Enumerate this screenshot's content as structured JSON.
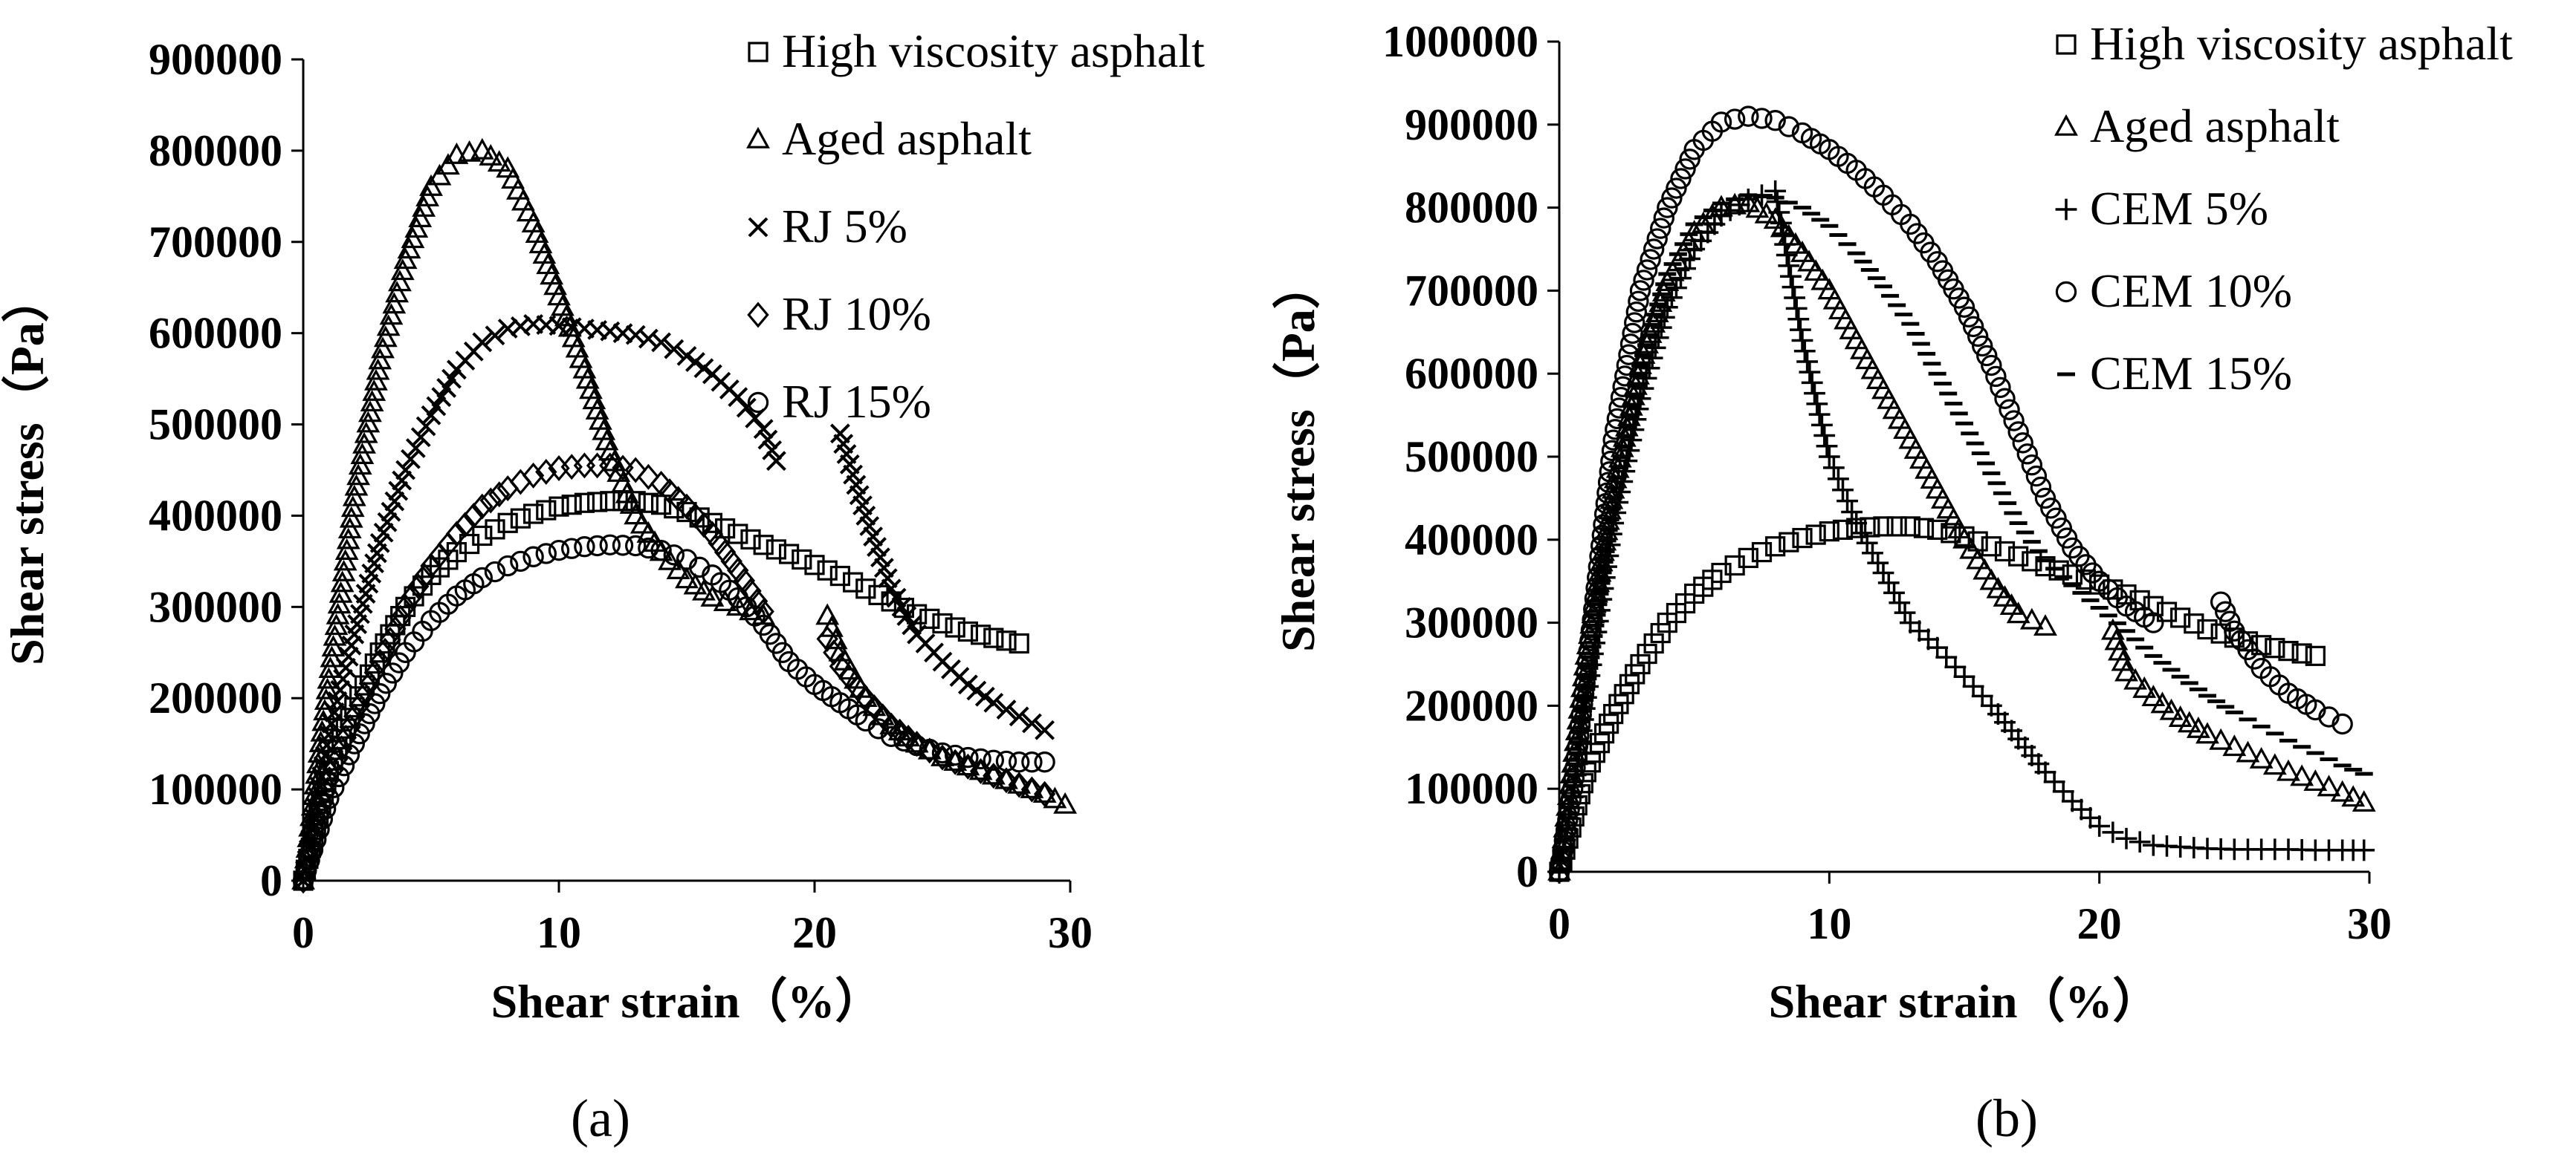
{
  "chart_data": [
    {
      "type": "scatter",
      "panel_label": "(a)",
      "xlabel": "Shear strain（%）",
      "ylabel": "Shear stress（Pa）",
      "xlim": [
        0,
        30
      ],
      "ylim": [
        0,
        900000
      ],
      "xticks": [
        0,
        10,
        20,
        30
      ],
      "yticks": [
        0,
        100000,
        200000,
        300000,
        400000,
        500000,
        600000,
        700000,
        800000,
        900000
      ],
      "grid": false,
      "legend_position": "top-right",
      "series": [
        {
          "name": "High viscosity asphalt",
          "marker": "square",
          "x": [
            0,
            1,
            2,
            3,
            4,
            5,
            6,
            7,
            8,
            9,
            10,
            11,
            12,
            13,
            14,
            15,
            16,
            17,
            18,
            19,
            20,
            21,
            22,
            23,
            24,
            25,
            26,
            27,
            28
          ],
          "y": [
            0,
            120000,
            190000,
            250000,
            300000,
            335000,
            360000,
            378000,
            392000,
            402000,
            410000,
            414000,
            416000,
            416000,
            412000,
            404000,
            392000,
            380000,
            368000,
            358000,
            346000,
            334000,
            320000,
            306000,
            292000,
            282000,
            273000,
            266000,
            260000
          ]
        },
        {
          "name": "Aged asphalt",
          "marker": "triangle",
          "x": [
            0,
            1,
            2,
            3,
            4,
            5,
            6,
            7,
            8,
            9,
            10,
            11,
            12,
            13,
            14,
            15,
            16,
            17,
            18,
            20.5,
            21,
            22,
            23,
            24,
            25,
            26,
            27,
            28,
            29,
            29.8
          ],
          "y": [
            0,
            220000,
            420000,
            570000,
            680000,
            760000,
            795000,
            800000,
            780000,
            720000,
            640000,
            560000,
            470000,
            400000,
            360000,
            330000,
            310000,
            300000,
            290000,
            290000,
            250000,
            200000,
            170000,
            150000,
            135000,
            125000,
            115000,
            105000,
            95000,
            83000
          ]
        },
        {
          "name": "RJ 5%",
          "marker": "x",
          "x": [
            0,
            1,
            2,
            3,
            4,
            5,
            6,
            7,
            8,
            9,
            10,
            11,
            12,
            13,
            14,
            15,
            16,
            17,
            18,
            18.5,
            21,
            22,
            23,
            24,
            25,
            26,
            27,
            28,
            29
          ],
          "y": [
            0,
            160000,
            270000,
            370000,
            450000,
            510000,
            560000,
            590000,
            605000,
            610000,
            608000,
            605000,
            602000,
            598000,
            590000,
            575000,
            555000,
            530000,
            495000,
            460000,
            490000,
            400000,
            320000,
            270000,
            240000,
            215000,
            195000,
            180000,
            165000
          ]
        },
        {
          "name": "RJ 10%",
          "marker": "diamond",
          "x": [
            0,
            1,
            2,
            3,
            4,
            5,
            6,
            7,
            8,
            9,
            10,
            11,
            12,
            13,
            14,
            15,
            16,
            17,
            18,
            20.5,
            21,
            22,
            23,
            24,
            25,
            26,
            27,
            28,
            29
          ],
          "y": [
            0,
            110000,
            180000,
            240000,
            300000,
            345000,
            380000,
            410000,
            430000,
            444000,
            452000,
            455000,
            455000,
            450000,
            435000,
            410000,
            380000,
            340000,
            295000,
            265000,
            235000,
            200000,
            170000,
            150000,
            135000,
            125000,
            115000,
            105000,
            95000
          ]
        },
        {
          "name": "RJ 15%",
          "marker": "circle",
          "x": [
            0,
            1,
            2,
            3,
            4,
            5,
            6,
            7,
            8,
            9,
            10,
            11,
            12,
            13,
            14,
            15,
            16,
            17,
            18,
            19,
            20,
            21,
            22,
            23,
            24,
            25,
            26,
            27,
            28,
            29
          ],
          "y": [
            0,
            90000,
            150000,
            205000,
            250000,
            285000,
            312000,
            332000,
            345000,
            355000,
            362000,
            366000,
            368000,
            367000,
            362000,
            352000,
            335000,
            310000,
            280000,
            240000,
            215000,
            195000,
            175000,
            158000,
            148000,
            140000,
            135000,
            132000,
            130000,
            130000
          ]
        }
      ]
    },
    {
      "type": "scatter",
      "panel_label": "(b)",
      "xlabel": "Shear strain（%）",
      "ylabel": "Shear stress（Pa）",
      "xlim": [
        0,
        30
      ],
      "ylim": [
        0,
        1000000
      ],
      "xticks": [
        0,
        10,
        20,
        30
      ],
      "yticks": [
        0,
        100000,
        200000,
        300000,
        400000,
        500000,
        600000,
        700000,
        800000,
        900000,
        1000000
      ],
      "grid": false,
      "legend_position": "top-right",
      "series": [
        {
          "name": "High viscosity asphalt",
          "marker": "square",
          "x": [
            0,
            1,
            2,
            3,
            4,
            5,
            6,
            7,
            8,
            9,
            10,
            11,
            12,
            13,
            14,
            15,
            16,
            17,
            18,
            19,
            20,
            21,
            22,
            23,
            24,
            25,
            26,
            27,
            28
          ],
          "y": [
            0,
            120000,
            190000,
            250000,
            300000,
            335000,
            360000,
            378000,
            392000,
            402000,
            410000,
            414000,
            416000,
            416000,
            412000,
            404000,
            392000,
            380000,
            368000,
            358000,
            346000,
            334000,
            320000,
            306000,
            292000,
            282000,
            273000,
            266000,
            260000
          ]
        },
        {
          "name": "Aged asphalt",
          "marker": "triangle",
          "x": [
            0,
            1,
            2,
            3,
            4,
            5,
            6,
            7,
            8,
            9,
            10,
            11,
            12,
            13,
            14,
            15,
            16,
            17,
            18,
            20.5,
            21,
            22,
            23,
            24,
            25,
            26,
            27,
            28,
            29,
            29.8
          ],
          "y": [
            0,
            260000,
            460000,
            610000,
            710000,
            770000,
            800000,
            805000,
            785000,
            745000,
            700000,
            640000,
            580000,
            520000,
            460000,
            400000,
            350000,
            310000,
            295000,
            290000,
            240000,
            210000,
            185000,
            165000,
            150000,
            135000,
            120000,
            108000,
            95000,
            83000
          ]
        },
        {
          "name": "CEM 5%",
          "marker": "plus",
          "x": [
            0,
            0.5,
            1,
            2,
            3,
            4,
            5,
            6,
            7,
            8,
            9,
            10,
            11,
            12,
            13,
            14,
            15,
            16,
            17,
            18,
            19,
            20,
            21,
            22,
            23,
            24,
            25,
            26,
            27,
            28,
            29,
            29.8
          ],
          "y": [
            0,
            90000,
            210000,
            420000,
            570000,
            680000,
            750000,
            790000,
            810000,
            820000,
            640000,
            500000,
            420000,
            360000,
            300000,
            270000,
            235000,
            200000,
            160000,
            120000,
            85000,
            55000,
            40000,
            32000,
            30000,
            28000,
            27000,
            27000,
            27000,
            26000,
            26000,
            26000
          ]
        },
        {
          "name": "CEM 10%",
          "marker": "circle",
          "x": [
            0,
            0.5,
            1,
            2,
            3,
            4,
            5,
            6,
            7,
            8,
            9,
            10,
            11,
            12,
            13,
            14,
            15,
            16,
            17,
            18,
            19,
            20,
            21,
            22,
            24.5,
            25,
            26,
            27,
            28,
            29
          ],
          "y": [
            0,
            100000,
            240000,
            520000,
            700000,
            800000,
            870000,
            903000,
            910000,
            905000,
            890000,
            870000,
            845000,
            815000,
            780000,
            735000,
            680000,
            610000,
            530000,
            450000,
            390000,
            350000,
            320000,
            300000,
            325000,
            290000,
            245000,
            215000,
            195000,
            178000
          ]
        },
        {
          "name": "CEM 15%",
          "marker": "dash",
          "x": [
            0,
            1,
            2,
            3,
            4,
            5,
            6,
            7,
            8,
            9,
            10,
            11,
            12,
            13,
            14,
            15,
            16,
            17,
            18,
            19,
            20,
            21,
            22,
            23,
            24,
            25,
            26,
            27,
            28,
            29,
            29.8
          ],
          "y": [
            0,
            220000,
            450000,
            610000,
            720000,
            780000,
            805000,
            815000,
            812000,
            800000,
            778000,
            745000,
            705000,
            660000,
            600000,
            540000,
            480000,
            420000,
            375000,
            345000,
            318000,
            290000,
            260000,
            235000,
            212000,
            192000,
            175000,
            158000,
            143000,
            128000,
            118000
          ]
        }
      ]
    }
  ]
}
